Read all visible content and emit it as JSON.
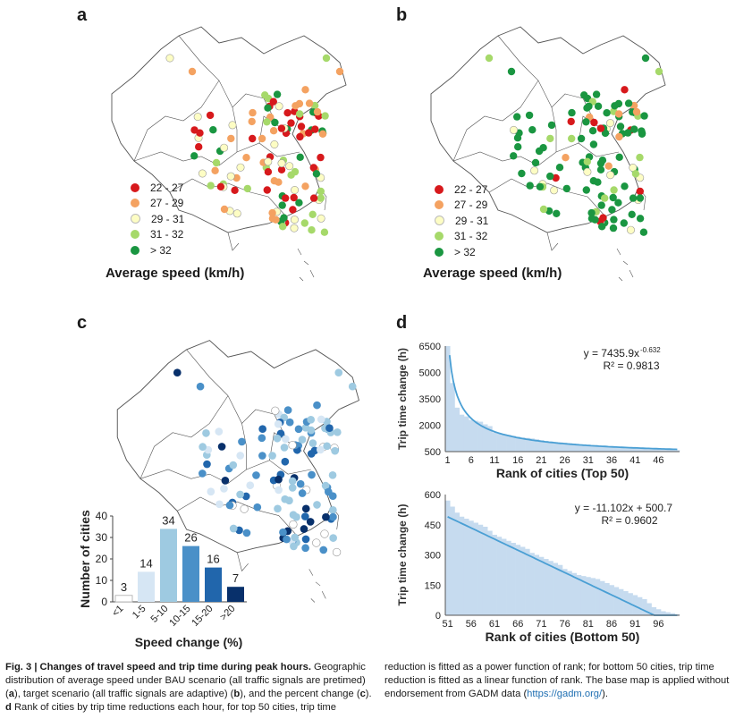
{
  "colors": {
    "speed": [
      "#d7191c",
      "#f4a261",
      "#fdfdc4",
      "#a6d96a",
      "#1a9641"
    ],
    "change": [
      "#ffffff",
      "#d6e6f4",
      "#9ecae1",
      "#4a90c8",
      "#2166ac",
      "#08306b"
    ],
    "fit_line": "#4a9fd4",
    "fit_fill": "#c6dbef",
    "map_line": "#555555"
  },
  "panels": {
    "a": {
      "letter": "a",
      "title": "Average speed (km/h)",
      "legend": [
        "22 - 27",
        "27 - 29",
        "29 - 31",
        "31 - 32",
        "> 32"
      ]
    },
    "b": {
      "letter": "b",
      "title": "Average speed (km/h)",
      "legend": [
        "22 - 27",
        "27 - 29",
        "29 - 31",
        "31 - 32",
        "> 32"
      ]
    },
    "c": {
      "letter": "c"
    },
    "d": {
      "letter": "d"
    }
  },
  "chart_data": [
    {
      "id": "c-bar",
      "type": "bar",
      "categories": [
        "<1",
        "1-5",
        "5-10",
        "10-15",
        "15-20",
        ">20"
      ],
      "values": [
        3,
        14,
        34,
        26,
        16,
        7
      ],
      "ylabel": "Number of cities",
      "xlabel": "Speed change (%)",
      "ylim": [
        0,
        40
      ],
      "yticks": [
        0,
        10,
        20,
        30,
        40
      ]
    },
    {
      "id": "d-top",
      "type": "bar",
      "xlabel": "Rank of cities (Top 50)",
      "ylabel": "Trip time change (h)",
      "ylim": [
        500,
        6500
      ],
      "yticks": [
        500,
        2000,
        3500,
        5000,
        6500
      ],
      "xticks": [
        1,
        6,
        11,
        16,
        21,
        26,
        31,
        36,
        41,
        46
      ],
      "x_range": [
        1,
        50
      ],
      "fit_equation": "y = 7435.9x",
      "fit_exponent": "-0.632",
      "fit_r2": "R² = 0.9813",
      "values": [
        6500,
        4400,
        3000,
        2600,
        2500,
        2300,
        2250,
        2200,
        2050,
        1950,
        1600,
        1550,
        1500,
        1450,
        1400,
        1350,
        1300,
        1280,
        1250,
        1200,
        1150,
        1100,
        1080,
        1050,
        1030,
        1000,
        980,
        950,
        920,
        900,
        880,
        860,
        840,
        820,
        800,
        780,
        760,
        740,
        720,
        700,
        690,
        680,
        670,
        660,
        650,
        640,
        620,
        600,
        590,
        580
      ]
    },
    {
      "id": "d-bottom",
      "type": "bar",
      "xlabel": "Rank of cities (Bottom 50)",
      "ylabel": "Trip time change (h)",
      "ylim": [
        0,
        600
      ],
      "yticks": [
        0,
        150,
        300,
        450,
        600
      ],
      "xticks": [
        51,
        56,
        61,
        66,
        71,
        76,
        81,
        86,
        91,
        96
      ],
      "x_range": [
        51,
        100
      ],
      "fit_equation": "y = -11.102x + 500.7",
      "fit_r2": "R² = 0.9602",
      "values": [
        570,
        540,
        510,
        490,
        480,
        470,
        460,
        450,
        440,
        420,
        400,
        390,
        380,
        370,
        360,
        350,
        340,
        330,
        310,
        300,
        290,
        280,
        270,
        260,
        250,
        230,
        220,
        210,
        200,
        195,
        190,
        185,
        180,
        170,
        160,
        150,
        140,
        130,
        120,
        110,
        100,
        90,
        80,
        60,
        40,
        30,
        20,
        15,
        10,
        5
      ]
    }
  ],
  "caption": {
    "fig_label": "Fig. 3 | Changes of travel speed and trip time during peak hours.",
    "left_text_1": " Geographic distribution of average speed under BAU scenario (all traffic signals are pretimed) (",
    "a": "a",
    "left_text_2": "), target scenario (all traffic signals are adaptive) (",
    "b": "b",
    "left_text_3": "), and the percent change (",
    "c": "c",
    "left_text_4": "). ",
    "d": "d",
    "left_text_5": " Rank of cities by trip time reductions each hour, for top 50 cities, trip time",
    "right_text_1": "reduction is fitted as a power function of rank; for bottom 50 cities, trip time reduction is fitted as a linear function of rank. The base map is applied without endorsement from GADM data (",
    "link": "https://gadm.org/",
    "right_text_2": ")."
  }
}
